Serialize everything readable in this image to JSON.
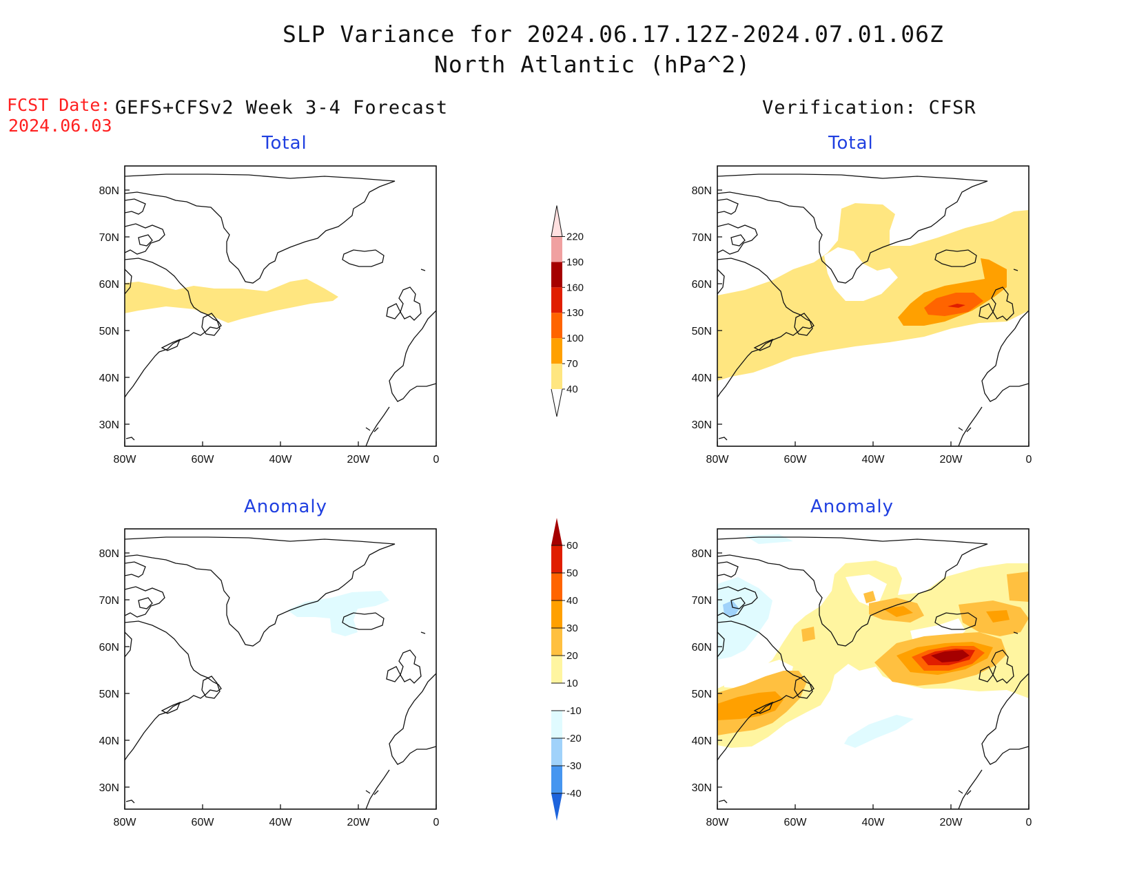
{
  "title": {
    "line1": "SLP Variance for 2024.06.17.12Z-2024.07.01.06Z",
    "line2": "North Atlantic (hPa^2)"
  },
  "forecast_date": {
    "label": "FCST Date:",
    "value": "2024.06.03"
  },
  "columns": {
    "left": "GEFS+CFSv2 Week 3-4 Forecast",
    "right": "Verification: CFSR"
  },
  "panel_titles": {
    "top": "Total",
    "bottom": "Anomaly"
  },
  "axes": {
    "lon_ticks": [
      "80W",
      "60W",
      "40W",
      "20W",
      "0"
    ],
    "lat_ticks": [
      "80N",
      "70N",
      "60N",
      "50N",
      "40N",
      "30N"
    ]
  },
  "colorbar_total": {
    "levels": [
      "40",
      "70",
      "100",
      "130",
      "160",
      "190",
      "220"
    ],
    "colors": [
      "#ffe680",
      "#ffa000",
      "#ff6400",
      "#e01e00",
      "#a50000",
      "#f0a0a0",
      "#ffe0e0"
    ]
  },
  "colorbar_anomaly": {
    "levels": [
      "60",
      "50",
      "40",
      "30",
      "20",
      "10",
      "-10",
      "-20",
      "-30",
      "-40"
    ],
    "colors_top_down": [
      "#a50000",
      "#e01e00",
      "#ff6400",
      "#ffa000",
      "#ffc040",
      "#fff5a0",
      "#ffffff",
      "#e0fbff",
      "#a0d2fa",
      "#4696f0",
      "#1e64dc"
    ]
  }
}
